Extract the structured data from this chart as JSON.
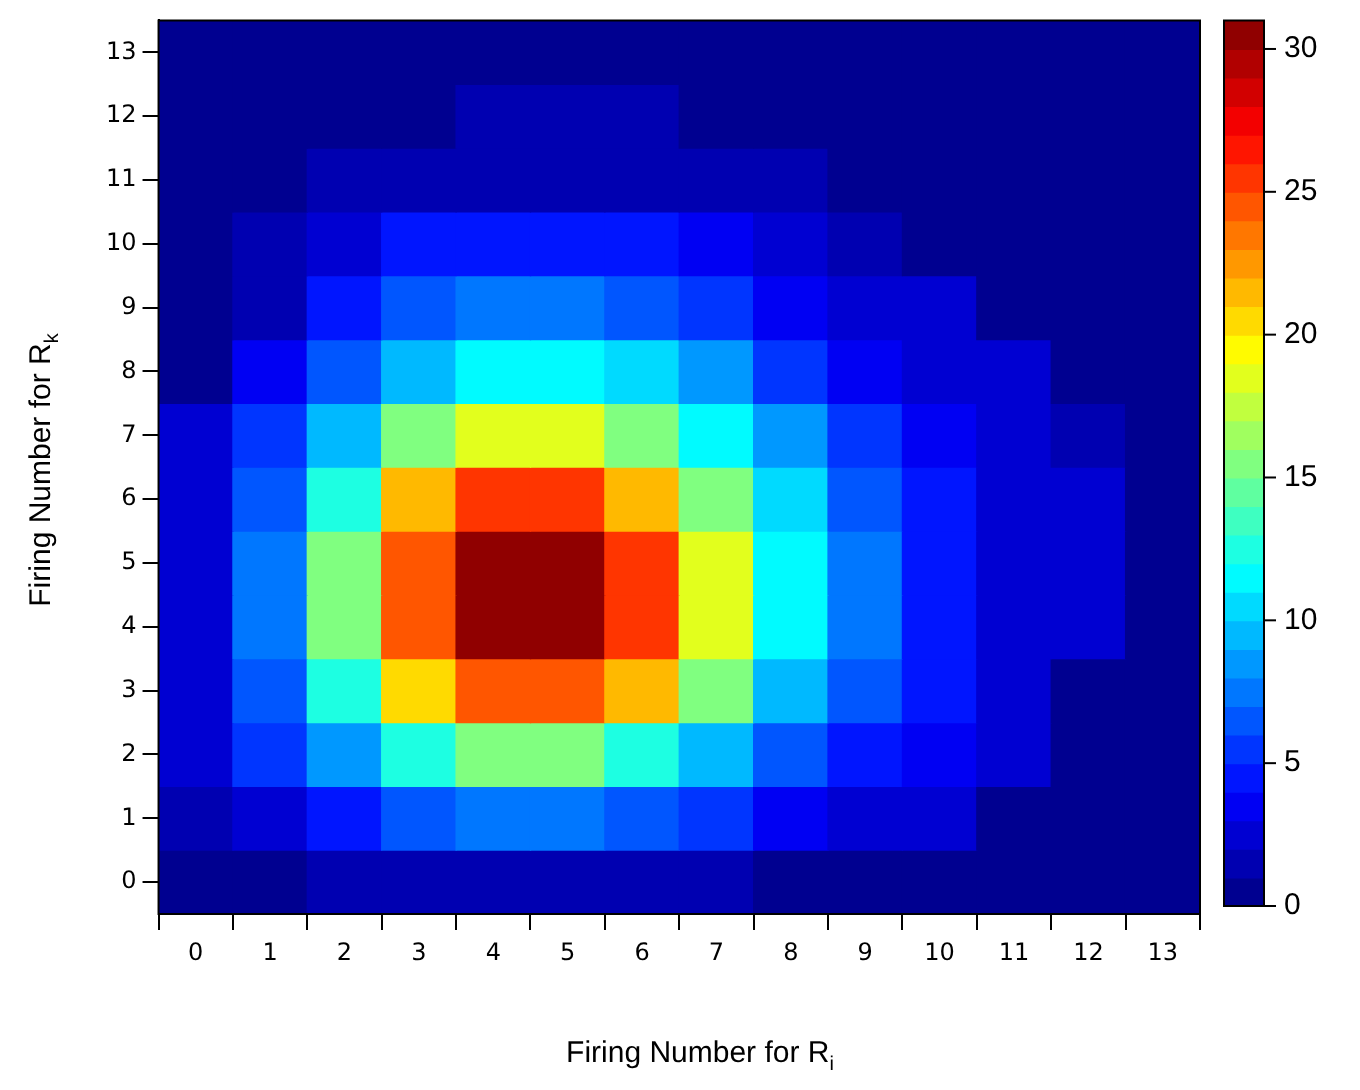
{
  "chart_data": {
    "type": "heatmap",
    "xlabel": "Firing Number for R$_{i}$",
    "ylabel": "Firing Number for R$_{k}$",
    "categories": [
      "0",
      "1",
      "2",
      "3",
      "4",
      "5",
      "6",
      "7",
      "8",
      "9",
      "10",
      "11",
      "12",
      "13"
    ],
    "y_categories": [
      "13",
      "12",
      "11",
      "10",
      "9",
      "8",
      "7",
      "6",
      "5",
      "4",
      "3",
      "2",
      "1",
      "0"
    ],
    "cells": [
      [
        0,
        0,
        0,
        0,
        0,
        0,
        0,
        0,
        0,
        0,
        0,
        0,
        0,
        0
      ],
      [
        0,
        0,
        0,
        0,
        1,
        1,
        1,
        0,
        0,
        0,
        0,
        0,
        0,
        0
      ],
      [
        0,
        0,
        1,
        1,
        1,
        1,
        1,
        1,
        1,
        0,
        0,
        0,
        0,
        0
      ],
      [
        0,
        1,
        2,
        4,
        4,
        4,
        4,
        3,
        2,
        1,
        0,
        0,
        0,
        0
      ],
      [
        0,
        1,
        4,
        6,
        7,
        7,
        6,
        5,
        3,
        2,
        2,
        0,
        0,
        0
      ],
      [
        0,
        3,
        6,
        9,
        11,
        11,
        10,
        8,
        5,
        3,
        2,
        2,
        0,
        0
      ],
      [
        2,
        5,
        9,
        15,
        18,
        18,
        15,
        11,
        8,
        5,
        3,
        2,
        1,
        0
      ],
      [
        2,
        6,
        12,
        21,
        25,
        25,
        21,
        15,
        10,
        6,
        4,
        2,
        2,
        0
      ],
      [
        2,
        7,
        15,
        24,
        31,
        31,
        25,
        18,
        11,
        7,
        4,
        2,
        2,
        0
      ],
      [
        2,
        7,
        15,
        24,
        31,
        31,
        25,
        18,
        11,
        7,
        4,
        2,
        2,
        0
      ],
      [
        2,
        6,
        12,
        20,
        24,
        24,
        21,
        15,
        9,
        6,
        4,
        2,
        0,
        0
      ],
      [
        2,
        5,
        8,
        12,
        15,
        15,
        12,
        9,
        6,
        4,
        3,
        2,
        0,
        0
      ],
      [
        1,
        2,
        4,
        6,
        7,
        7,
        6,
        5,
        3,
        2,
        2,
        0,
        0,
        0
      ],
      [
        0,
        0,
        1,
        1,
        1,
        1,
        1,
        1,
        0,
        0,
        0,
        0,
        0,
        0
      ]
    ],
    "clim": [
      0,
      31
    ],
    "cticks": [
      0,
      5,
      10,
      15,
      20,
      25,
      30
    ]
  }
}
